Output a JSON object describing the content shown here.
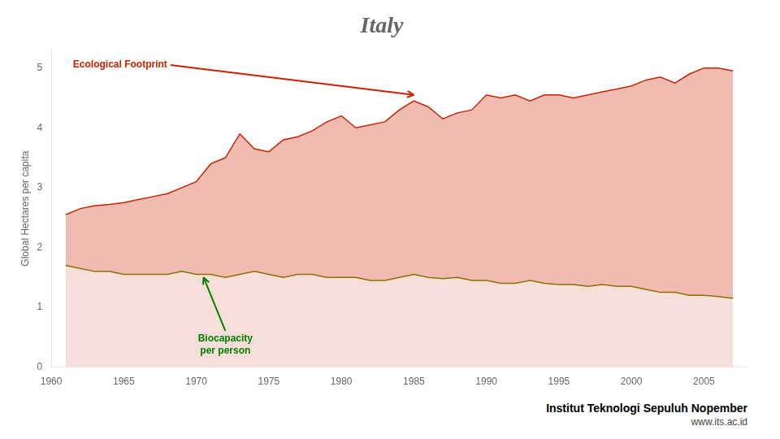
{
  "chart_data": {
    "type": "area",
    "title": "Italy",
    "ylabel": "Global Hectares per capita",
    "x": [
      1961,
      1962,
      1963,
      1964,
      1965,
      1966,
      1967,
      1968,
      1969,
      1970,
      1971,
      1972,
      1973,
      1974,
      1975,
      1976,
      1977,
      1978,
      1979,
      1980,
      1981,
      1982,
      1983,
      1984,
      1985,
      1986,
      1987,
      1988,
      1989,
      1990,
      1991,
      1992,
      1993,
      1994,
      1995,
      1996,
      1997,
      1998,
      1999,
      2000,
      2001,
      2002,
      2003,
      2004,
      2005,
      2006,
      2007
    ],
    "series": [
      {
        "color": "#cc2200",
        "values": [
          2.55,
          2.65,
          2.7,
          2.72,
          2.75,
          2.8,
          2.85,
          2.9,
          3.0,
          3.1,
          3.4,
          3.5,
          3.9,
          3.65,
          3.6,
          3.8,
          3.85,
          3.95,
          4.1,
          4.2,
          4.0,
          4.05,
          4.1,
          4.3,
          4.45,
          4.35,
          4.15,
          4.25,
          4.3,
          4.55,
          4.5,
          4.55,
          4.45,
          4.55,
          4.55,
          4.5,
          4.55,
          4.6,
          4.65,
          4.7,
          4.8,
          4.85,
          4.75,
          4.9,
          5.0,
          5.0,
          4.95
        ]
      },
      {
        "color": "#808000",
        "values": [
          1.7,
          1.65,
          1.6,
          1.6,
          1.55,
          1.55,
          1.55,
          1.55,
          1.6,
          1.55,
          1.55,
          1.5,
          1.55,
          1.6,
          1.55,
          1.5,
          1.55,
          1.55,
          1.5,
          1.5,
          1.5,
          1.45,
          1.45,
          1.5,
          1.55,
          1.5,
          1.48,
          1.5,
          1.45,
          1.45,
          1.4,
          1.4,
          1.45,
          1.4,
          1.38,
          1.38,
          1.35,
          1.38,
          1.35,
          1.35,
          1.3,
          1.25,
          1.25,
          1.2,
          1.2,
          1.18,
          1.15
        ]
      }
    ],
    "xlim": [
      1960,
      2008
    ],
    "xticks": [
      1960,
      1965,
      1970,
      1975,
      1980,
      1985,
      1990,
      1995,
      2000,
      2005
    ],
    "ylim": [
      0,
      5.3
    ],
    "yticks": [
      0,
      1,
      2,
      3,
      4,
      5
    ],
    "grid": false,
    "annotations": [
      {
        "text": "Ecological Footprint",
        "x": 1961.5,
        "y": 5.05,
        "arrow_x": 1985,
        "arrow_y": 4.55,
        "color": "#cc2200"
      },
      {
        "text": "Biocapacity\nper person",
        "x": 1972,
        "y": 0.58,
        "arrow_x": 1970.5,
        "arrow_y": 1.5,
        "color": "#008000"
      },
      {
        "text": "Institut Teknologi Sepuluh Nopember"
      },
      {
        "text": "www.its.ac.id"
      }
    ]
  }
}
